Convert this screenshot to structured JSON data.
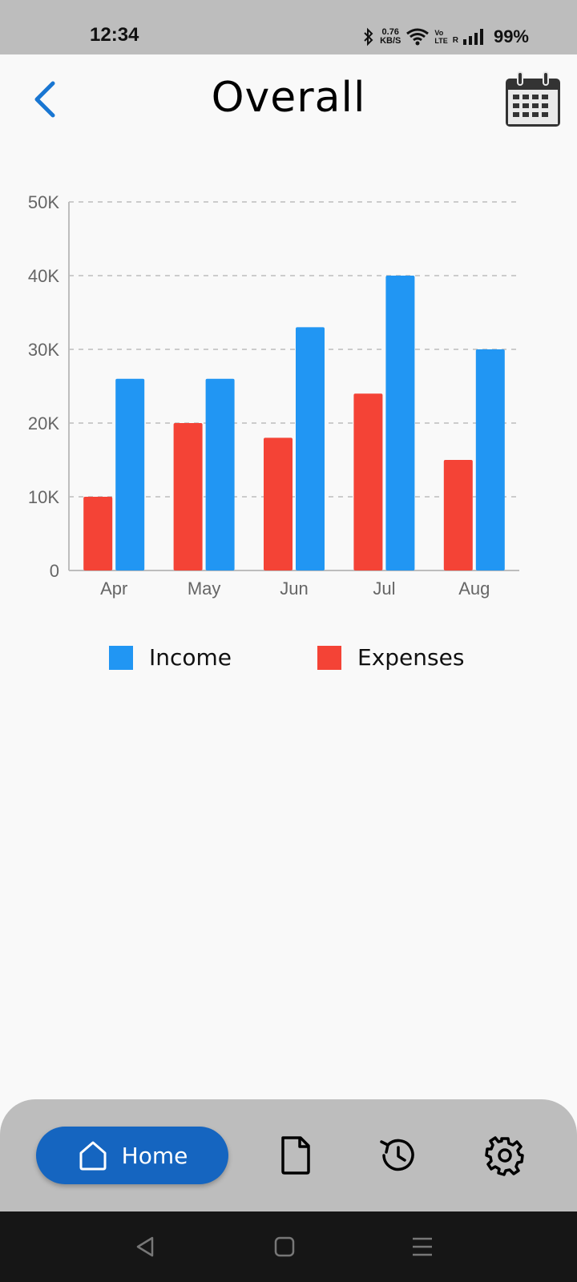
{
  "status_bar": {
    "time": "12:34",
    "net_speed_value": "0.76",
    "net_speed_unit": "KB/S",
    "volte_top": "Vo",
    "volte_bottom": "LTE",
    "roaming": "R",
    "battery": "99%"
  },
  "header": {
    "title": "Overall",
    "back_icon": "chevron-left-icon",
    "calendar_icon": "calendar-icon"
  },
  "chart_data": {
    "type": "bar",
    "categories": [
      "Apr",
      "May",
      "Jun",
      "Jul",
      "Aug"
    ],
    "series": [
      {
        "name": "Expenses",
        "color": "#f44336",
        "values": [
          10000,
          20000,
          18000,
          24000,
          15000
        ]
      },
      {
        "name": "Income",
        "color": "#2196f3",
        "values": [
          26000,
          26000,
          33000,
          40000,
          30000
        ]
      }
    ],
    "ylim": [
      0,
      50000
    ],
    "yticks": [
      0,
      10000,
      20000,
      30000,
      40000,
      50000
    ],
    "ytick_labels": [
      "0",
      "10K",
      "20K",
      "30K",
      "40K",
      "50K"
    ],
    "grid": true,
    "legend": [
      {
        "label": "Income",
        "color": "#2196f3"
      },
      {
        "label": "Expenses",
        "color": "#f44336"
      }
    ],
    "legend_position": "bottom"
  },
  "bottom_nav": {
    "home_label": "Home",
    "items": [
      "home-icon",
      "document-icon",
      "history-icon",
      "gear-icon"
    ],
    "active_color": "#1565c0"
  }
}
